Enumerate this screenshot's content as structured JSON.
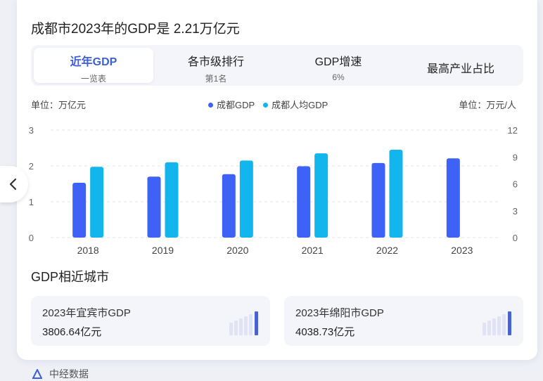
{
  "header": {
    "title": "成都市2023年的GDP是 2.21万亿元"
  },
  "tabs": [
    {
      "label": "近年GDP",
      "sub": "一览表",
      "active": true
    },
    {
      "label": "各市级排行",
      "sub": "第1名",
      "active": false
    },
    {
      "label": "GDP增速",
      "sub": "6%",
      "active": false
    },
    {
      "label": "最高产业占比",
      "sub": "",
      "active": false
    }
  ],
  "units": {
    "left": "单位：万亿元",
    "right": "单位：万元/人"
  },
  "colors": {
    "gdp": "#3e62f5",
    "per_capita": "#13b6ec",
    "accent": "#3d5fd8"
  },
  "chart_data": {
    "type": "bar",
    "categories": [
      "2018",
      "2019",
      "2020",
      "2021",
      "2022",
      "2023"
    ],
    "series": [
      {
        "name": "成都GDP",
        "axis": "left",
        "values": [
          1.53,
          1.7,
          1.77,
          1.99,
          2.08,
          2.21
        ]
      },
      {
        "name": "成都人均GDP",
        "axis": "right",
        "values": [
          7.9,
          8.4,
          8.6,
          9.4,
          9.8,
          null
        ]
      }
    ],
    "y_left": {
      "range": [
        0,
        3
      ],
      "ticks": [
        "0",
        "1",
        "2",
        "3"
      ]
    },
    "y_right": {
      "range": [
        0,
        12
      ],
      "ticks": [
        "0",
        "3",
        "6",
        "9",
        "12"
      ]
    },
    "grid": true,
    "legend": "top-center"
  },
  "similar": {
    "title": "GDP相近城市",
    "cities": [
      {
        "name": "2023年宜宾市GDP",
        "value": "3806.64亿元"
      },
      {
        "name": "2023年绵阳市GDP",
        "value": "4038.73亿元"
      }
    ]
  },
  "footer": {
    "source": "中经数据"
  },
  "icons": {
    "prev": "chevron-left-icon",
    "source_logo": "source-logo-icon"
  }
}
